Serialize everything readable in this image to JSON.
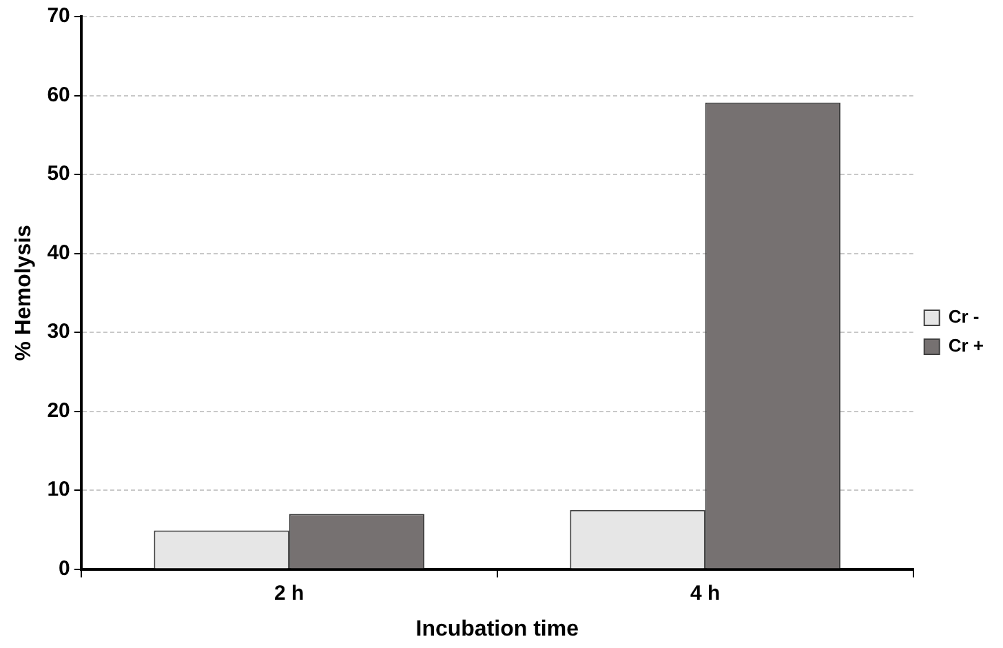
{
  "chart_data": {
    "type": "bar",
    "xlabel": "Incubation time",
    "ylabel": "% Hemolysis",
    "categories": [
      "2 h",
      "4 h"
    ],
    "series": [
      {
        "name": "Cr -",
        "color": "#e6e6e6",
        "values": [
          4.9,
          7.5
        ]
      },
      {
        "name": "Cr +",
        "color": "#767171",
        "values": [
          7.0,
          59.1
        ]
      }
    ],
    "ylim": [
      0,
      70
    ],
    "yticks": [
      0,
      10,
      20,
      30,
      40,
      50,
      60,
      70
    ],
    "grid": "y",
    "legend": "right"
  }
}
